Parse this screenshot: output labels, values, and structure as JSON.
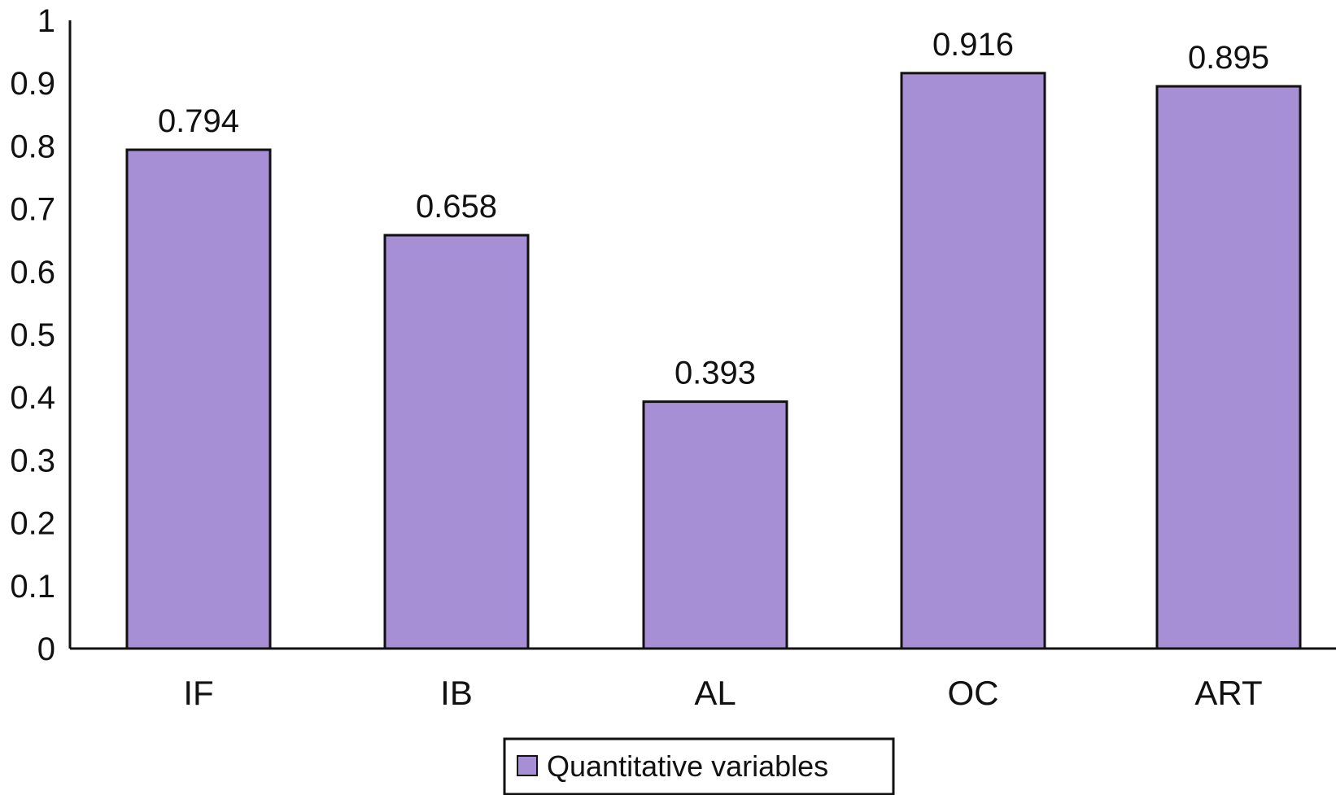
{
  "chart_data": {
    "type": "bar",
    "title": "",
    "xlabel": "",
    "ylabel": "",
    "categories": [
      "IF",
      "IB",
      "AL",
      "OC",
      "ART"
    ],
    "series": [
      {
        "name": "Quantitative variables",
        "values": [
          0.794,
          0.658,
          0.393,
          0.916,
          0.895
        ],
        "data_labels": [
          "0.794",
          "0.658",
          "0.393",
          "0.916",
          "0.895"
        ],
        "color": "#a78fd6"
      }
    ],
    "ylim": [
      0,
      1
    ],
    "yticks": [
      0,
      0.1,
      0.2,
      0.3,
      0.4,
      0.5,
      0.6,
      0.7,
      0.8,
      0.9,
      1
    ],
    "ytick_labels": [
      "0",
      "0.1",
      "0.2",
      "0.3",
      "0.4",
      "0.5",
      "0.6",
      "0.7",
      "0.8",
      "0.9",
      "1"
    ],
    "grid": false,
    "legend": {
      "placement": "bottom-center",
      "entries": [
        "Quantitative variables"
      ]
    },
    "bar_outline_color": "#111111",
    "axis_color": "#111111"
  }
}
